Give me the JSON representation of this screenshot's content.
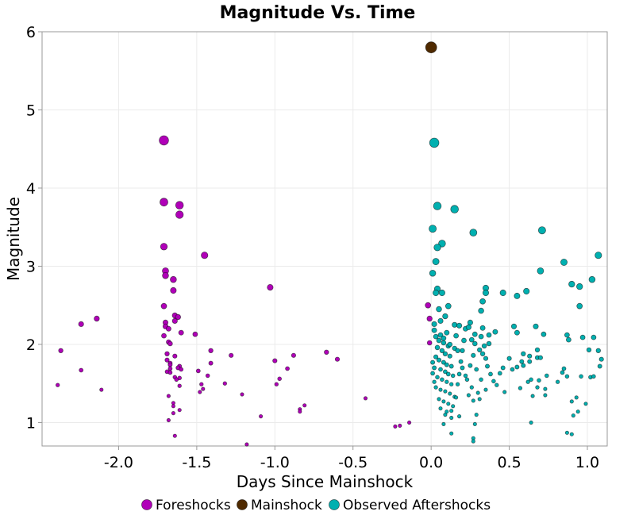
{
  "chart_data": {
    "type": "scatter",
    "title": "Magnitude Vs. Time",
    "xlabel": "Days Since Mainshock",
    "ylabel": "Magnitude",
    "xlim": [
      -2.49,
      1.127
    ],
    "ylim": [
      0.7,
      6.0
    ],
    "xticks": [
      -2.0,
      -1.5,
      -1.0,
      -0.5,
      0.0,
      0.5,
      1.0
    ],
    "xtick_labels": [
      "-2.0",
      "-1.5",
      "-1.0",
      "-0.5",
      "0.0",
      "0.5",
      "1.0"
    ],
    "yticks": [
      1,
      2,
      3,
      4,
      5,
      6
    ],
    "ytick_labels": [
      "1",
      "2",
      "3",
      "4",
      "5",
      "6"
    ],
    "grid": true,
    "legend_position": "bottom",
    "marker_size_encodes": "magnitude",
    "series": [
      {
        "name": "Foreshocks",
        "color": "#b000b8",
        "points": [
          [
            -1.71,
            4.61
          ],
          [
            -1.71,
            3.82
          ],
          [
            -1.61,
            3.78
          ],
          [
            -1.61,
            3.66
          ],
          [
            -1.71,
            3.25
          ],
          [
            -1.45,
            3.14
          ],
          [
            -1.7,
            2.94
          ],
          [
            -1.7,
            2.88
          ],
          [
            -1.65,
            2.83
          ],
          [
            -1.65,
            2.69
          ],
          [
            -1.71,
            2.49
          ],
          [
            -1.64,
            2.37
          ],
          [
            -1.62,
            2.35
          ],
          [
            -1.64,
            2.3
          ],
          [
            -1.7,
            2.28
          ],
          [
            -1.7,
            2.23
          ],
          [
            -1.68,
            2.2
          ],
          [
            -1.6,
            2.15
          ],
          [
            -1.51,
            2.13
          ],
          [
            -1.71,
            2.11
          ],
          [
            -1.68,
            2.03
          ],
          [
            -1.67,
            2.01
          ],
          [
            -2.37,
            1.92
          ],
          [
            -2.24,
            2.26
          ],
          [
            -2.14,
            2.33
          ],
          [
            -1.69,
            1.88
          ],
          [
            -1.64,
            1.85
          ],
          [
            -1.69,
            1.8
          ],
          [
            -1.67,
            1.76
          ],
          [
            -1.67,
            1.74
          ],
          [
            -1.67,
            1.69
          ],
          [
            -1.69,
            1.65
          ],
          [
            -1.61,
            1.72
          ],
          [
            -1.62,
            1.7
          ],
          [
            -1.6,
            1.68
          ],
          [
            -1.67,
            1.64
          ],
          [
            -1.61,
            1.57
          ],
          [
            -1.64,
            1.58
          ],
          [
            -1.63,
            1.55
          ],
          [
            -1.61,
            1.47
          ],
          [
            -2.24,
            1.67
          ],
          [
            -2.39,
            1.48
          ],
          [
            -2.11,
            1.42
          ],
          [
            -1.49,
            1.66
          ],
          [
            -1.43,
            1.6
          ],
          [
            -1.46,
            1.43
          ],
          [
            -1.41,
            1.92
          ],
          [
            -1.41,
            1.76
          ],
          [
            -1.28,
            1.86
          ],
          [
            -1.32,
            1.5
          ],
          [
            -1.21,
            1.36
          ],
          [
            -1.68,
            1.34
          ],
          [
            -1.65,
            1.25
          ],
          [
            -1.65,
            1.21
          ],
          [
            -1.61,
            1.16
          ],
          [
            -1.65,
            1.12
          ],
          [
            -1.68,
            1.03
          ],
          [
            -1.64,
            0.83
          ],
          [
            -1.47,
            1.49
          ],
          [
            -1.48,
            1.39
          ],
          [
            -1.03,
            2.73
          ],
          [
            -1.0,
            1.79
          ],
          [
            -0.88,
            1.86
          ],
          [
            -0.92,
            1.69
          ],
          [
            -0.97,
            1.56
          ],
          [
            -0.99,
            1.49
          ],
          [
            -0.81,
            1.22
          ],
          [
            -0.84,
            1.17
          ],
          [
            -0.84,
            1.14
          ],
          [
            -1.09,
            1.08
          ],
          [
            -1.18,
            0.72
          ],
          [
            -0.67,
            1.9
          ],
          [
            -0.6,
            1.81
          ],
          [
            -0.42,
            1.31
          ],
          [
            -0.23,
            0.95
          ],
          [
            -0.2,
            0.96
          ],
          [
            -0.14,
            1.0
          ],
          [
            -0.02,
            2.5
          ],
          [
            -0.01,
            2.33
          ],
          [
            -0.01,
            2.02
          ]
        ]
      },
      {
        "name": "Mainshock",
        "color": "#4f2a00",
        "points": [
          [
            0.0,
            5.8
          ]
        ]
      },
      {
        "name": "Observed Aftershocks",
        "color": "#00b0b0",
        "points": [
          [
            0.02,
            4.58
          ],
          [
            0.04,
            3.77
          ],
          [
            0.15,
            3.73
          ],
          [
            0.01,
            3.48
          ],
          [
            0.27,
            3.43
          ],
          [
            0.71,
            3.46
          ],
          [
            0.07,
            3.29
          ],
          [
            0.04,
            3.24
          ],
          [
            0.03,
            3.06
          ],
          [
            1.07,
            3.14
          ],
          [
            0.85,
            3.05
          ],
          [
            0.01,
            2.91
          ],
          [
            0.7,
            2.94
          ],
          [
            0.35,
            2.72
          ],
          [
            0.35,
            2.66
          ],
          [
            1.03,
            2.83
          ],
          [
            0.9,
            2.77
          ],
          [
            0.95,
            2.74
          ],
          [
            0.55,
            2.62
          ],
          [
            0.61,
            2.68
          ],
          [
            0.46,
            2.66
          ],
          [
            0.04,
            2.71
          ],
          [
            0.07,
            2.66
          ],
          [
            0.03,
            2.66
          ],
          [
            0.33,
            2.55
          ],
          [
            0.32,
            2.43
          ],
          [
            0.11,
            2.49
          ],
          [
            0.95,
            2.49
          ],
          [
            0.53,
            2.23
          ],
          [
            0.55,
            2.15
          ],
          [
            0.67,
            2.23
          ],
          [
            0.72,
            2.13
          ],
          [
            0.87,
            2.12
          ],
          [
            0.88,
            2.06
          ],
          [
            0.97,
            2.09
          ],
          [
            1.04,
            2.09
          ],
          [
            0.68,
            1.93
          ],
          [
            1.01,
            1.93
          ],
          [
            1.07,
            1.92
          ],
          [
            1.09,
            1.81
          ],
          [
            0.59,
            1.88
          ],
          [
            0.63,
            1.85
          ],
          [
            0.68,
            1.83
          ],
          [
            0.7,
            1.83
          ],
          [
            0.5,
            1.82
          ],
          [
            0.58,
            1.78
          ],
          [
            0.59,
            1.73
          ],
          [
            0.55,
            1.71
          ],
          [
            0.52,
            1.68
          ],
          [
            0.63,
            1.78
          ],
          [
            0.62,
            1.52
          ],
          [
            0.85,
            1.69
          ],
          [
            0.87,
            1.59
          ],
          [
            1.02,
            1.58
          ],
          [
            0.96,
            1.59
          ],
          [
            1.04,
            1.59
          ],
          [
            1.08,
            1.72
          ],
          [
            0.84,
            1.64
          ],
          [
            0.81,
            1.52
          ],
          [
            0.69,
            1.54
          ],
          [
            0.74,
            1.6
          ],
          [
            0.64,
            1.55
          ],
          [
            0.57,
            1.44
          ],
          [
            0.68,
            1.45
          ],
          [
            0.73,
            1.35
          ],
          [
            0.65,
            1.34
          ],
          [
            0.73,
            1.43
          ],
          [
            0.9,
            1.27
          ],
          [
            0.93,
            1.32
          ],
          [
            0.99,
            1.24
          ],
          [
            0.91,
            1.09
          ],
          [
            0.94,
            1.14
          ],
          [
            0.64,
            1.0
          ],
          [
            0.87,
            0.87
          ],
          [
            0.9,
            0.85
          ],
          [
            0.02,
            2.18
          ],
          [
            0.03,
            2.1
          ],
          [
            0.05,
            2.05
          ],
          [
            0.06,
            2.12
          ],
          [
            0.08,
            2.08
          ],
          [
            0.1,
            2.15
          ],
          [
            0.11,
            1.98
          ],
          [
            0.04,
            1.96
          ],
          [
            0.07,
            1.92
          ],
          [
            0.09,
            1.88
          ],
          [
            0.12,
            1.85
          ],
          [
            0.03,
            1.84
          ],
          [
            0.05,
            1.8
          ],
          [
            0.08,
            1.77
          ],
          [
            0.1,
            1.74
          ],
          [
            0.13,
            1.72
          ],
          [
            0.02,
            1.7
          ],
          [
            0.06,
            1.68
          ],
          [
            0.09,
            1.65
          ],
          [
            0.11,
            1.62
          ],
          [
            0.14,
            1.6
          ],
          [
            0.04,
            1.58
          ],
          [
            0.07,
            1.55
          ],
          [
            0.1,
            1.52
          ],
          [
            0.13,
            1.49
          ],
          [
            0.03,
            1.45
          ],
          [
            0.06,
            1.42
          ],
          [
            0.09,
            1.4
          ],
          [
            0.12,
            1.37
          ],
          [
            0.15,
            1.33
          ],
          [
            0.05,
            1.3
          ],
          [
            0.08,
            1.27
          ],
          [
            0.11,
            1.24
          ],
          [
            0.14,
            1.21
          ],
          [
            0.06,
            1.18
          ],
          [
            0.1,
            1.14
          ],
          [
            0.09,
            1.1
          ],
          [
            0.18,
            1.08
          ],
          [
            0.13,
            1.06
          ],
          [
            0.08,
            0.98
          ],
          [
            0.13,
            0.86
          ],
          [
            0.16,
            1.32
          ],
          [
            0.17,
            1.49
          ],
          [
            0.18,
            1.62
          ],
          [
            0.19,
            1.78
          ],
          [
            0.2,
            1.92
          ],
          [
            0.21,
            2.05
          ],
          [
            0.16,
            2.11
          ],
          [
            0.22,
            2.2
          ],
          [
            0.24,
            2.22
          ],
          [
            0.26,
            2.06
          ],
          [
            0.28,
            2.01
          ],
          [
            0.27,
            1.86
          ],
          [
            0.25,
            1.73
          ],
          [
            0.29,
            1.68
          ],
          [
            0.23,
            1.55
          ],
          [
            0.26,
            1.45
          ],
          [
            0.3,
            1.38
          ],
          [
            0.27,
            1.28
          ],
          [
            0.29,
            1.1
          ],
          [
            0.28,
            0.98
          ],
          [
            0.27,
            0.8
          ],
          [
            0.27,
            0.76
          ],
          [
            0.31,
            1.93
          ],
          [
            0.33,
            1.88
          ],
          [
            0.35,
            1.82
          ],
          [
            0.36,
            1.72
          ],
          [
            0.38,
            1.62
          ],
          [
            0.4,
            1.53
          ],
          [
            0.35,
            1.42
          ],
          [
            0.42,
            1.48
          ],
          [
            0.44,
            1.63
          ],
          [
            0.46,
            1.7
          ],
          [
            0.37,
            2.01
          ],
          [
            0.41,
            2.16
          ],
          [
            0.32,
            1.55
          ],
          [
            0.31,
            1.3
          ],
          [
            0.47,
            1.39
          ],
          [
            0.08,
            2.02
          ],
          [
            0.12,
            2.0
          ],
          [
            0.15,
            1.95
          ],
          [
            0.01,
            1.77
          ],
          [
            0.01,
            1.63
          ],
          [
            0.02,
            1.52
          ],
          [
            0.2,
            1.7
          ],
          [
            0.17,
            1.92
          ],
          [
            0.22,
            1.6
          ],
          [
            0.24,
            1.35
          ],
          [
            0.13,
            1.15
          ],
          [
            0.15,
            2.25
          ],
          [
            0.02,
            2.26
          ],
          [
            0.06,
            2.3
          ],
          [
            0.09,
            2.36
          ],
          [
            0.05,
            2.45
          ],
          [
            0.18,
            2.24
          ],
          [
            0.25,
            2.28
          ],
          [
            0.28,
            2.13
          ],
          [
            0.32,
            2.1
          ],
          [
            0.37,
            2.12
          ],
          [
            0.33,
            2.21
          ],
          [
            0.34,
            1.98
          ]
        ]
      }
    ]
  }
}
